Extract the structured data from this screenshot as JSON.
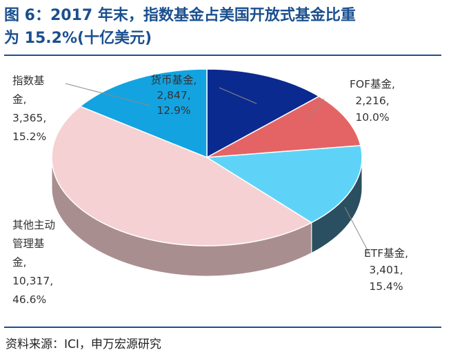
{
  "title": {
    "line1": "图 6：2017 年末，指数基金占美国开放式基金比重",
    "line2": "为 15.2%(十亿美元)"
  },
  "source": "资料来源：ICI，申万宏源研究",
  "chart_data": {
    "type": "pie",
    "unit": "十亿美元",
    "slices": [
      {
        "name": "货币基金",
        "value": 2847,
        "value_label": "2,847",
        "pct_label": "12.9%",
        "color": "#0b2a8f",
        "side": "#0a1f60"
      },
      {
        "name": "FOF基金",
        "value": 2216,
        "value_label": "2,216",
        "pct_label": "10.0%",
        "color": "#e46465",
        "side": "#8a3a3b"
      },
      {
        "name": "ETF基金",
        "value": 3401,
        "value_label": "3,401",
        "pct_label": "15.4%",
        "color": "#5fd3f7",
        "side": "#2a4f60"
      },
      {
        "name": "其他主动管理基金",
        "value": 10317,
        "value_label": "10,317",
        "pct_label": "46.6%",
        "color": "#f5d1d3",
        "side": "#a98e90"
      },
      {
        "name": "指数基金",
        "value": 3365,
        "value_label": "3,365",
        "pct_label": "15.2%",
        "color": "#13a3e0",
        "side": "#0c5e85"
      }
    ],
    "labels": [
      {
        "lines": [
          "货币基金,",
          "2,847,",
          "12.9%"
        ]
      },
      {
        "lines": [
          "FOF基金,",
          "2,216,",
          "10.0%"
        ]
      },
      {
        "lines": [
          "ETF基金,",
          "3,401,",
          "15.4%"
        ]
      },
      {
        "lines": [
          "其他主动",
          "管理基",
          "金,",
          "10,317,",
          "46.6%"
        ]
      },
      {
        "lines": [
          "指数基",
          "金,",
          "3,365,",
          "15.2%"
        ]
      }
    ]
  }
}
